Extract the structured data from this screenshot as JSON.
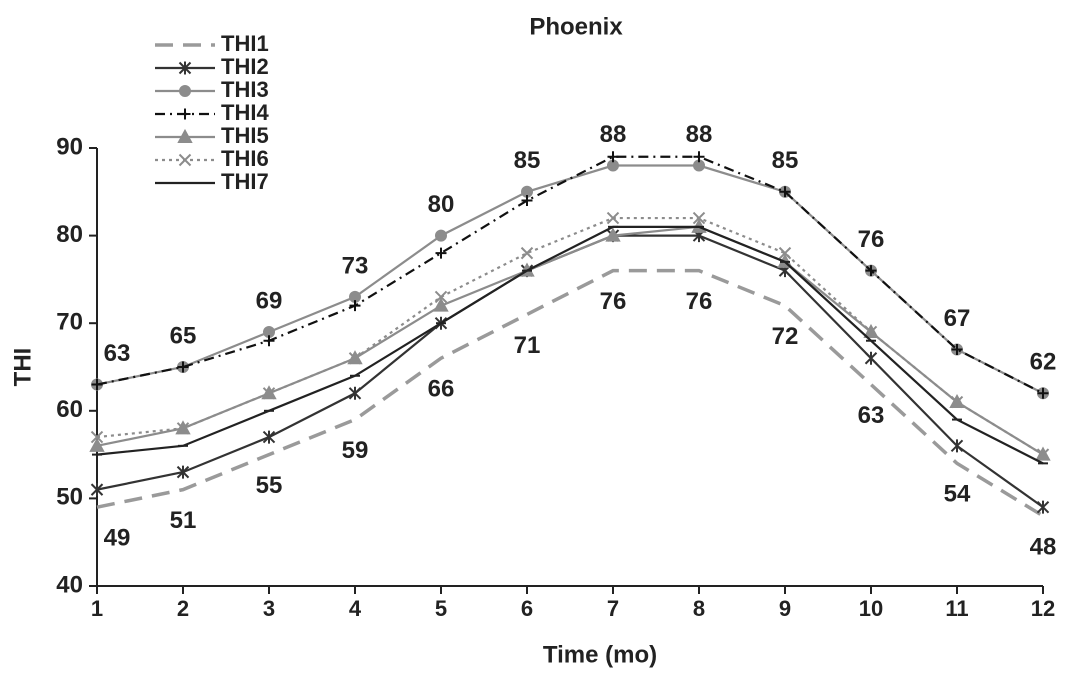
{
  "chart_data": {
    "type": "line",
    "title": "Phoenix",
    "xlabel": "Time (mo)",
    "ylabel": "THI",
    "x": [
      1,
      2,
      3,
      4,
      5,
      6,
      7,
      8,
      9,
      10,
      11,
      12
    ],
    "xlim": [
      1,
      12
    ],
    "xticks": [
      1,
      2,
      3,
      4,
      5,
      6,
      7,
      8,
      9,
      10,
      11,
      12
    ],
    "ylim": [
      40,
      90
    ],
    "yticks": [
      40,
      50,
      60,
      70,
      80,
      90
    ],
    "legend": "upper left",
    "series": [
      {
        "name": "THI1",
        "color": "#9a9a9a",
        "dash": "dashed",
        "marker": "none",
        "data_labels": "below",
        "values": [
          49,
          51,
          55,
          59,
          66,
          71,
          76,
          76,
          72,
          63,
          54,
          48
        ]
      },
      {
        "name": "THI2",
        "color": "#333333",
        "dash": "solid",
        "marker": "asterisk",
        "values": [
          51,
          53,
          57,
          62,
          70,
          76,
          80,
          80,
          76,
          66,
          56,
          49
        ]
      },
      {
        "name": "THI3",
        "color": "#8c8c8c",
        "dash": "solid",
        "marker": "circle",
        "data_labels": "above",
        "values": [
          63,
          65,
          69,
          73,
          80,
          85,
          88,
          88,
          85,
          76,
          67,
          62
        ]
      },
      {
        "name": "THI4",
        "color": "#111111",
        "dash": "dashdot",
        "marker": "plus",
        "values": [
          63,
          65,
          68,
          72,
          78,
          84,
          89,
          89,
          85,
          76,
          67,
          62
        ]
      },
      {
        "name": "THI5",
        "color": "#8c8c8c",
        "dash": "solid",
        "marker": "triangle",
        "values": [
          56,
          58,
          62,
          66,
          72,
          76,
          80,
          81,
          77,
          69,
          61,
          55
        ]
      },
      {
        "name": "THI6",
        "color": "#8c8c8c",
        "dash": "dotted",
        "marker": "x",
        "values": [
          57,
          58,
          62,
          66,
          73,
          78,
          82,
          82,
          78,
          69,
          61,
          55
        ]
      },
      {
        "name": "THI7",
        "color": "#222222",
        "dash": "solid",
        "marker": "dash",
        "values": [
          55,
          56,
          60,
          64,
          70,
          76,
          81,
          81,
          77,
          68,
          59,
          54
        ]
      }
    ]
  }
}
